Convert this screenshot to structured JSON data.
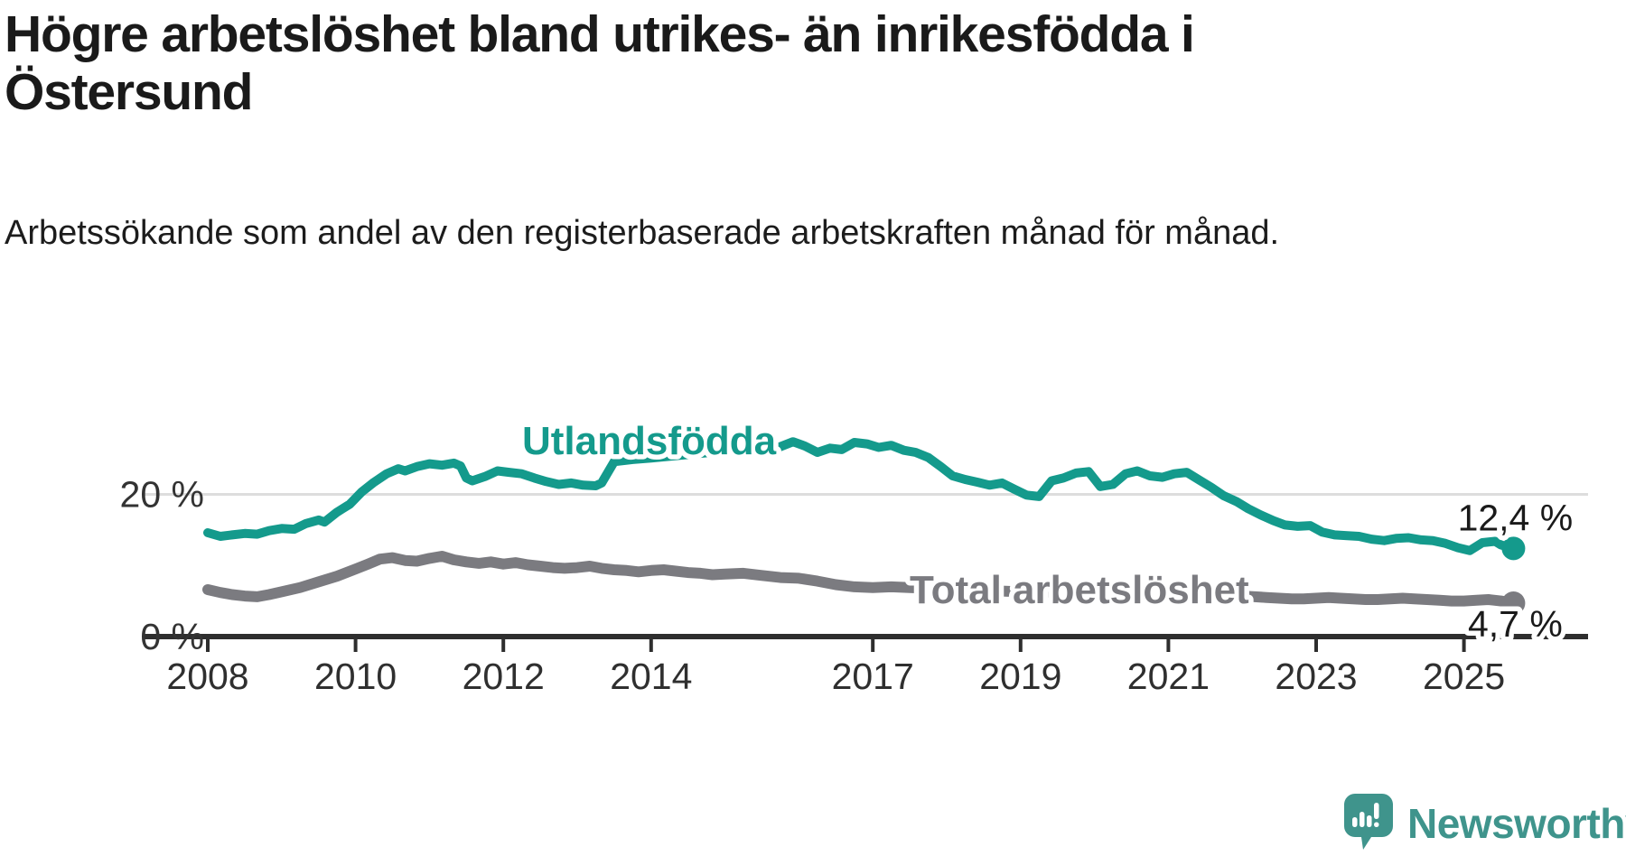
{
  "header": {
    "title": "Högre arbetslöshet bland utrikes- än inrikesfödda i Östersund",
    "subtitle": "Arbetssökande som andel av den registerbaserade arbetskraften månad för månad."
  },
  "chart_data": {
    "type": "line",
    "unit": "%",
    "x_ticks": [
      2008,
      2010,
      2012,
      2014,
      2017,
      2019,
      2021,
      2023,
      2025
    ],
    "y_ticks": [
      {
        "value": 0,
        "label": "0 %"
      },
      {
        "value": 20,
        "label": "20 %"
      }
    ],
    "x_range": [
      2008.0,
      2025.67
    ],
    "ylim": [
      0,
      40
    ],
    "grid": "horizontal-only",
    "legend_position": "inline-labels",
    "series": [
      {
        "name": "Utlandsfödda",
        "color": "#149a8c",
        "end_label": "12,4 %",
        "end_value": 12.4,
        "points": [
          [
            2008.0,
            14.6
          ],
          [
            2008.17,
            14.1
          ],
          [
            2008.33,
            14.3
          ],
          [
            2008.5,
            14.5
          ],
          [
            2008.67,
            14.4
          ],
          [
            2008.83,
            14.9
          ],
          [
            2009.0,
            15.2
          ],
          [
            2009.17,
            15.1
          ],
          [
            2009.33,
            15.9
          ],
          [
            2009.5,
            16.4
          ],
          [
            2009.58,
            16.1
          ],
          [
            2009.75,
            17.5
          ],
          [
            2009.92,
            18.6
          ],
          [
            2010.08,
            20.3
          ],
          [
            2010.25,
            21.7
          ],
          [
            2010.42,
            22.9
          ],
          [
            2010.58,
            23.6
          ],
          [
            2010.67,
            23.3
          ],
          [
            2010.83,
            23.9
          ],
          [
            2011.0,
            24.3
          ],
          [
            2011.17,
            24.1
          ],
          [
            2011.33,
            24.4
          ],
          [
            2011.42,
            24.0
          ],
          [
            2011.5,
            22.3
          ],
          [
            2011.58,
            21.9
          ],
          [
            2011.75,
            22.5
          ],
          [
            2011.92,
            23.3
          ],
          [
            2012.08,
            23.1
          ],
          [
            2012.25,
            22.9
          ],
          [
            2012.42,
            22.3
          ],
          [
            2012.58,
            21.8
          ],
          [
            2012.75,
            21.4
          ],
          [
            2012.92,
            21.6
          ],
          [
            2013.08,
            21.3
          ],
          [
            2013.25,
            21.2
          ],
          [
            2013.33,
            21.6
          ],
          [
            2013.5,
            24.6
          ],
          [
            2013.75,
            24.9
          ],
          [
            2014.0,
            25.1
          ],
          [
            2014.5,
            25.6
          ],
          [
            2015.0,
            26.1
          ],
          [
            2015.5,
            26.4
          ],
          [
            2015.75,
            26.7
          ],
          [
            2015.92,
            27.4
          ],
          [
            2016.08,
            26.8
          ],
          [
            2016.25,
            25.9
          ],
          [
            2016.42,
            26.5
          ],
          [
            2016.58,
            26.3
          ],
          [
            2016.75,
            27.3
          ],
          [
            2016.92,
            27.1
          ],
          [
            2017.08,
            26.6
          ],
          [
            2017.25,
            26.9
          ],
          [
            2017.42,
            26.2
          ],
          [
            2017.58,
            25.9
          ],
          [
            2017.75,
            25.2
          ],
          [
            2017.92,
            23.9
          ],
          [
            2018.08,
            22.6
          ],
          [
            2018.25,
            22.1
          ],
          [
            2018.42,
            21.7
          ],
          [
            2018.58,
            21.3
          ],
          [
            2018.75,
            21.6
          ],
          [
            2018.92,
            20.7
          ],
          [
            2019.08,
            19.9
          ],
          [
            2019.25,
            19.7
          ],
          [
            2019.42,
            21.9
          ],
          [
            2019.58,
            22.3
          ],
          [
            2019.75,
            23.0
          ],
          [
            2019.92,
            23.2
          ],
          [
            2020.08,
            21.1
          ],
          [
            2020.25,
            21.4
          ],
          [
            2020.42,
            22.9
          ],
          [
            2020.58,
            23.3
          ],
          [
            2020.75,
            22.6
          ],
          [
            2020.92,
            22.4
          ],
          [
            2021.08,
            22.9
          ],
          [
            2021.25,
            23.1
          ],
          [
            2021.42,
            22.0
          ],
          [
            2021.58,
            21.0
          ],
          [
            2021.75,
            19.8
          ],
          [
            2021.92,
            19.0
          ],
          [
            2022.08,
            18.0
          ],
          [
            2022.25,
            17.1
          ],
          [
            2022.42,
            16.3
          ],
          [
            2022.58,
            15.7
          ],
          [
            2022.75,
            15.5
          ],
          [
            2022.92,
            15.6
          ],
          [
            2023.08,
            14.7
          ],
          [
            2023.25,
            14.3
          ],
          [
            2023.42,
            14.2
          ],
          [
            2023.58,
            14.1
          ],
          [
            2023.75,
            13.7
          ],
          [
            2023.92,
            13.5
          ],
          [
            2024.08,
            13.8
          ],
          [
            2024.25,
            13.9
          ],
          [
            2024.42,
            13.6
          ],
          [
            2024.58,
            13.5
          ],
          [
            2024.75,
            13.1
          ],
          [
            2024.92,
            12.5
          ],
          [
            2025.08,
            12.1
          ],
          [
            2025.25,
            13.2
          ],
          [
            2025.42,
            13.4
          ],
          [
            2025.5,
            12.9
          ],
          [
            2025.67,
            12.4
          ]
        ]
      },
      {
        "name": "Total arbetslöshet",
        "color": "#7b7b80",
        "end_label": "4,7 %",
        "end_value": 4.7,
        "points": [
          [
            2008.0,
            6.6
          ],
          [
            2008.17,
            6.2
          ],
          [
            2008.33,
            5.9
          ],
          [
            2008.5,
            5.7
          ],
          [
            2008.67,
            5.6
          ],
          [
            2008.83,
            5.9
          ],
          [
            2009.0,
            6.3
          ],
          [
            2009.25,
            6.9
          ],
          [
            2009.5,
            7.7
          ],
          [
            2009.75,
            8.5
          ],
          [
            2010.0,
            9.5
          ],
          [
            2010.17,
            10.2
          ],
          [
            2010.33,
            10.9
          ],
          [
            2010.5,
            11.1
          ],
          [
            2010.67,
            10.7
          ],
          [
            2010.83,
            10.6
          ],
          [
            2011.0,
            11.0
          ],
          [
            2011.17,
            11.3
          ],
          [
            2011.33,
            10.8
          ],
          [
            2011.5,
            10.5
          ],
          [
            2011.67,
            10.3
          ],
          [
            2011.83,
            10.5
          ],
          [
            2012.0,
            10.2
          ],
          [
            2012.17,
            10.4
          ],
          [
            2012.33,
            10.1
          ],
          [
            2012.5,
            9.9
          ],
          [
            2012.67,
            9.7
          ],
          [
            2012.83,
            9.6
          ],
          [
            2013.0,
            9.7
          ],
          [
            2013.17,
            9.9
          ],
          [
            2013.33,
            9.6
          ],
          [
            2013.5,
            9.4
          ],
          [
            2013.67,
            9.3
          ],
          [
            2013.83,
            9.1
          ],
          [
            2014.0,
            9.3
          ],
          [
            2014.17,
            9.4
          ],
          [
            2014.33,
            9.2
          ],
          [
            2014.5,
            9.0
          ],
          [
            2014.67,
            8.9
          ],
          [
            2014.83,
            8.7
          ],
          [
            2015.0,
            8.8
          ],
          [
            2015.25,
            8.9
          ],
          [
            2015.5,
            8.6
          ],
          [
            2015.75,
            8.3
          ],
          [
            2016.0,
            8.2
          ],
          [
            2016.25,
            7.8
          ],
          [
            2016.5,
            7.3
          ],
          [
            2016.75,
            7.0
          ],
          [
            2017.0,
            6.9
          ],
          [
            2017.25,
            7.0
          ],
          [
            2017.5,
            6.9
          ],
          [
            2017.75,
            6.8
          ],
          [
            2018.0,
            6.7
          ],
          [
            2018.25,
            6.6
          ],
          [
            2018.5,
            6.5
          ],
          [
            2018.75,
            6.4
          ],
          [
            2019.0,
            6.3
          ],
          [
            2019.25,
            6.3
          ],
          [
            2019.5,
            6.2
          ],
          [
            2019.75,
            6.2
          ],
          [
            2020.0,
            6.1
          ],
          [
            2020.25,
            6.3
          ],
          [
            2020.5,
            6.4
          ],
          [
            2020.75,
            6.3
          ],
          [
            2021.0,
            6.2
          ],
          [
            2021.25,
            6.1
          ],
          [
            2021.5,
            6.0
          ],
          [
            2021.75,
            5.8
          ],
          [
            2022.0,
            5.7
          ],
          [
            2022.17,
            5.6
          ],
          [
            2022.33,
            5.5
          ],
          [
            2022.5,
            5.4
          ],
          [
            2022.67,
            5.3
          ],
          [
            2022.83,
            5.3
          ],
          [
            2023.0,
            5.4
          ],
          [
            2023.17,
            5.5
          ],
          [
            2023.33,
            5.4
          ],
          [
            2023.5,
            5.3
          ],
          [
            2023.67,
            5.2
          ],
          [
            2023.83,
            5.2
          ],
          [
            2024.0,
            5.3
          ],
          [
            2024.17,
            5.4
          ],
          [
            2024.33,
            5.3
          ],
          [
            2024.5,
            5.2
          ],
          [
            2024.67,
            5.1
          ],
          [
            2024.83,
            5.0
          ],
          [
            2025.0,
            5.0
          ],
          [
            2025.17,
            5.1
          ],
          [
            2025.33,
            5.2
          ],
          [
            2025.5,
            5.0
          ],
          [
            2025.67,
            4.7
          ]
        ]
      }
    ]
  },
  "footer": {
    "brand": "Newsworthy",
    "brand_color": "#3f948c"
  }
}
